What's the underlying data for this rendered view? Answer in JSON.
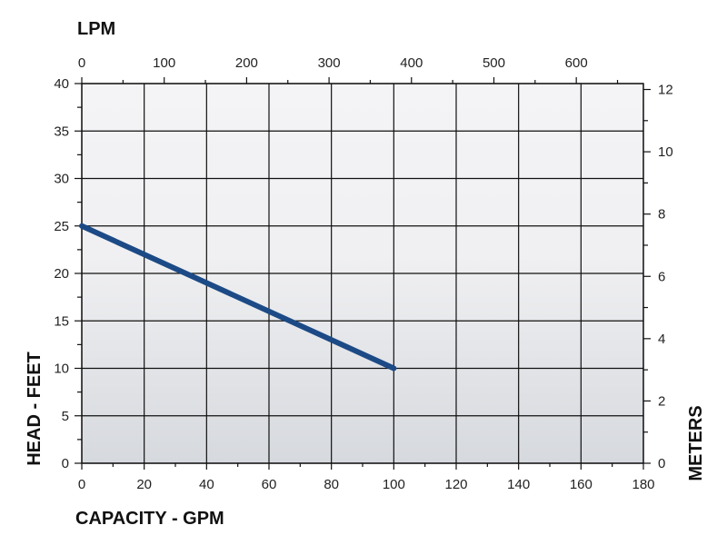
{
  "chart_data": {
    "type": "line",
    "title": "",
    "xlabel": "CAPACITY - GPM",
    "ylabel": "HEAD - FEET",
    "x2label": "LPM",
    "y2label": "METERS",
    "xlim": [
      0,
      180
    ],
    "ylim": [
      0,
      40
    ],
    "x2lim": [
      0,
      681.4
    ],
    "y2lim": [
      0,
      12.19
    ],
    "xticks": [
      0,
      20,
      40,
      60,
      80,
      100,
      120,
      140,
      160,
      180
    ],
    "yticks": [
      0,
      5,
      10,
      15,
      20,
      25,
      30,
      35,
      40
    ],
    "x2ticks": [
      0,
      100,
      200,
      300,
      400,
      500,
      600
    ],
    "y2ticks": [
      0,
      2,
      4,
      6,
      8,
      10,
      12
    ],
    "grid": true,
    "series": [
      {
        "x": [
          0,
          100
        ],
        "y": [
          25,
          10
        ]
      }
    ],
    "colors": {
      "line": "#1c4a86",
      "grid": "#111111",
      "bg_top": "#f4f4f6",
      "bg_bottom": "#d6d9de"
    }
  }
}
